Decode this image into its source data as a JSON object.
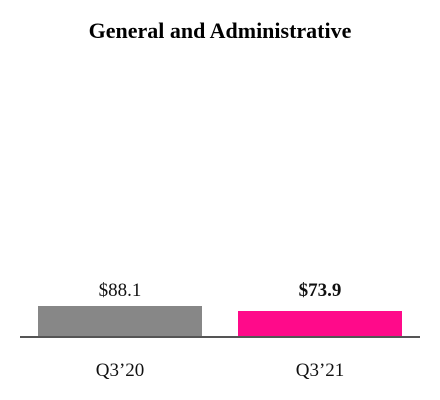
{
  "chart_data": {
    "type": "bar",
    "title": "General and Administrative",
    "categories": [
      "Q3’20",
      "Q3’21"
    ],
    "values": [
      88.1,
      73.9
    ],
    "value_labels": [
      "$88.1",
      "$73.9"
    ],
    "value_label_bold": [
      false,
      true
    ],
    "colors": [
      "#878787",
      "#ff0a8a"
    ],
    "axis_color": "#555555",
    "xlabel": "",
    "ylabel": "",
    "ylim": [
      0,
      88.1
    ],
    "grid": false,
    "legend": "none"
  }
}
